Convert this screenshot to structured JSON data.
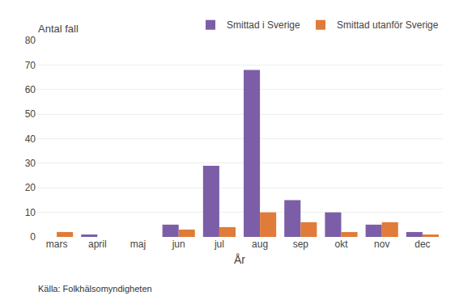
{
  "chart_data": {
    "type": "bar",
    "ylabel": "Antal fall",
    "xlabel": "År",
    "annotations": [
      "Källa: Folkhälsomyndigheten"
    ],
    "categories": [
      "mars",
      "april",
      "maj",
      "jun",
      "jul",
      "aug",
      "sep",
      "okt",
      "nov",
      "dec"
    ],
    "series": [
      {
        "name": "Smittad i Sverige",
        "color": "#7B5EA7",
        "values": [
          0,
          1,
          0,
          5,
          29,
          68,
          15,
          10,
          5,
          2
        ]
      },
      {
        "name": "Smittad utanför Sverige",
        "color": "#E07B39",
        "values": [
          2,
          0,
          0,
          3,
          4,
          10,
          6,
          2,
          6,
          1
        ]
      }
    ],
    "ylim": [
      0,
      80
    ],
    "yticks": [
      0,
      10,
      20,
      30,
      40,
      50,
      60,
      70,
      80
    ],
    "grid": true,
    "legend": "top"
  }
}
